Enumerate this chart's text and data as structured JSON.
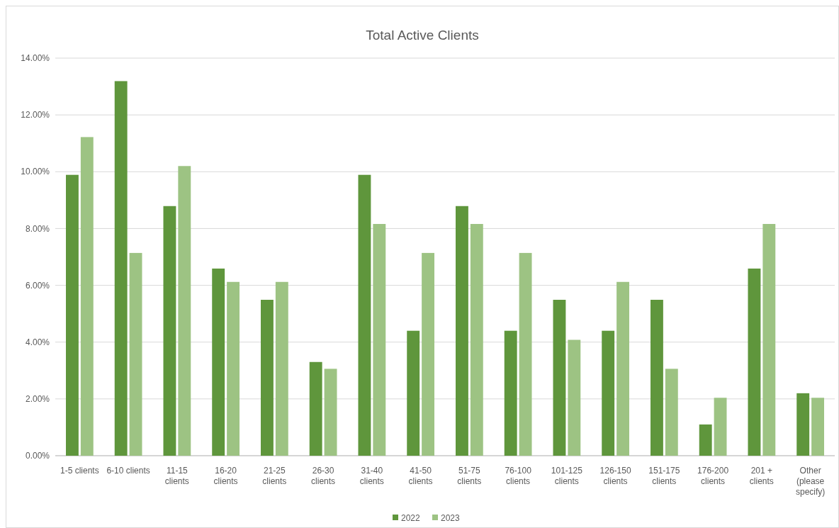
{
  "chart_data": {
    "type": "bar",
    "title": "Total Active Clients",
    "categories": [
      "1-5 clients",
      "6-10 clients",
      "11-15 clients",
      "16-20 clients",
      "21-25 clients",
      "26-30 clients",
      "31-40 clients",
      "41-50 clients",
      "51-75 clients",
      "76-100 clients",
      "101-125 clients",
      "126-150 clients",
      "151-175 clients",
      "176-200 clients",
      "201 + clients",
      "Other (please specify)"
    ],
    "series": [
      {
        "name": "2022",
        "color": "#5f963c",
        "values": [
          9.89,
          13.19,
          8.79,
          6.59,
          5.49,
          3.3,
          9.89,
          4.4,
          8.79,
          4.4,
          5.49,
          4.4,
          5.49,
          1.1,
          6.59,
          2.2
        ]
      },
      {
        "name": "2023",
        "color": "#9dc383",
        "values": [
          11.22,
          7.14,
          10.2,
          6.12,
          6.12,
          3.06,
          8.16,
          7.14,
          8.16,
          7.14,
          4.08,
          6.12,
          3.06,
          2.04,
          8.16,
          2.04
        ]
      }
    ],
    "ylim": [
      0,
      14
    ],
    "yticks": [
      {
        "value": 0,
        "label": "0.00%"
      },
      {
        "value": 2,
        "label": "2.00%"
      },
      {
        "value": 4,
        "label": "4.00%"
      },
      {
        "value": 6,
        "label": "6.00%"
      },
      {
        "value": 8,
        "label": "8.00%"
      },
      {
        "value": 10,
        "label": "10.00%"
      },
      {
        "value": 12,
        "label": "12.00%"
      },
      {
        "value": 14,
        "label": "14.00%"
      }
    ],
    "grid": "y",
    "legend": "bottom"
  }
}
